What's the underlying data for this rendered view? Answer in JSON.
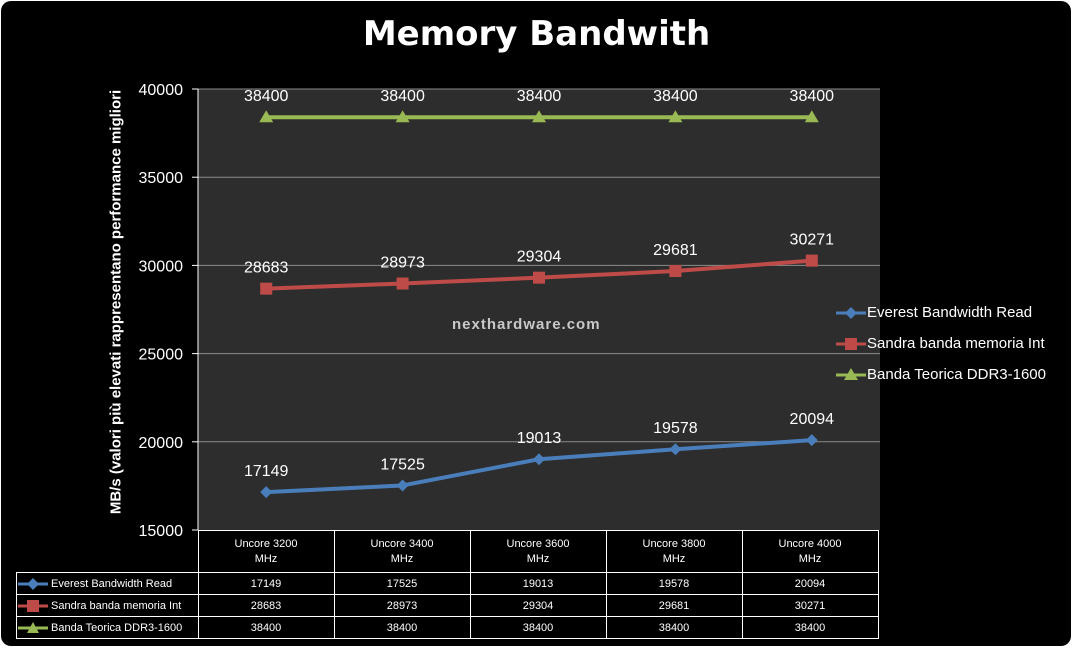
{
  "chart_data": {
    "type": "line",
    "title": "Memory Bandwith",
    "ylabel": "MB/s (valori più elevati rappresentano performance migliori",
    "ylim": [
      15000,
      40000
    ],
    "yticks": [
      15000,
      20000,
      25000,
      30000,
      35000,
      40000
    ],
    "grid": true,
    "legend_position": "right",
    "categories": [
      "Uncore 3200 MHz",
      "Uncore 3400 MHz",
      "Uncore 3600 MHz",
      "Uncore 3800 MHz",
      "Uncore 4000 MHz"
    ],
    "category_lines": [
      [
        "Uncore 3200",
        "MHz"
      ],
      [
        "Uncore 3400",
        "MHz"
      ],
      [
        "Uncore 3600",
        "MHz"
      ],
      [
        "Uncore 3800",
        "MHz"
      ],
      [
        "Uncore 4000",
        "MHz"
      ]
    ],
    "series": [
      {
        "name": "Everest Bandwidth Read",
        "table_name": "Everest Bandwidth  Read",
        "values": [
          17149,
          17525,
          19013,
          19578,
          20094
        ],
        "color": "#4a7ebb",
        "marker": "diamond"
      },
      {
        "name": "Sandra banda memoria Int",
        "table_name": "Sandra banda memoria Int",
        "values": [
          28683,
          28973,
          29304,
          29681,
          30271
        ],
        "color": "#be4b48",
        "marker": "square"
      },
      {
        "name": "Banda Teorica DDR3-1600",
        "table_name": "Banda Teorica DDR3-1600",
        "values": [
          38400,
          38400,
          38400,
          38400,
          38400
        ],
        "color": "#98b954",
        "marker": "triangle"
      }
    ]
  },
  "watermark": "nexthardware.com"
}
